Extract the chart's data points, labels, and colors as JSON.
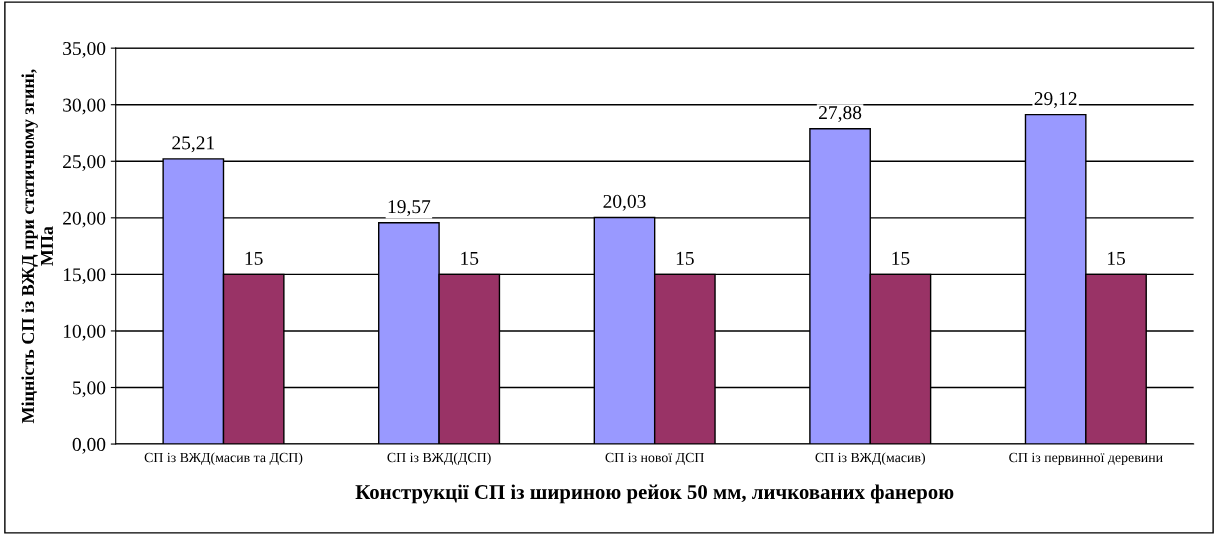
{
  "chart_data": {
    "type": "bar",
    "xlabel": "Конструкції СП із шириною рейок 50 мм, личкованих фанерою",
    "ylabel": "Міцність СП із ВЖД при статичному згині,\nМПа",
    "categories": [
      "СП із ВЖД(масив та ДСП)",
      "СП із ВЖД(ДСП)",
      "СП із нової ДСП",
      "СП із ВЖД(масив)",
      "СП із первинної деревини"
    ],
    "series": [
      {
        "color": "#9999ff",
        "values": [
          25.21,
          19.57,
          20.03,
          27.88,
          29.12
        ],
        "value_labels": [
          "25,21",
          "19,57",
          "20,03",
          "27,88",
          "29,12"
        ]
      },
      {
        "color": "#993366",
        "values": [
          15,
          15,
          15,
          15,
          15
        ],
        "value_labels": [
          "15",
          "15",
          "15",
          "15",
          "15"
        ]
      }
    ],
    "ylim": [
      0,
      35
    ],
    "yticks": [
      {
        "value": 0,
        "label": "0,00"
      },
      {
        "value": 5,
        "label": "5,00"
      },
      {
        "value": 10,
        "label": "10,00"
      },
      {
        "value": 15,
        "label": "15,00"
      },
      {
        "value": 20,
        "label": "20,00"
      },
      {
        "value": 25,
        "label": "25,00"
      },
      {
        "value": 30,
        "label": "30,00"
      },
      {
        "value": 35,
        "label": "35,00"
      }
    ],
    "grid": "y"
  }
}
